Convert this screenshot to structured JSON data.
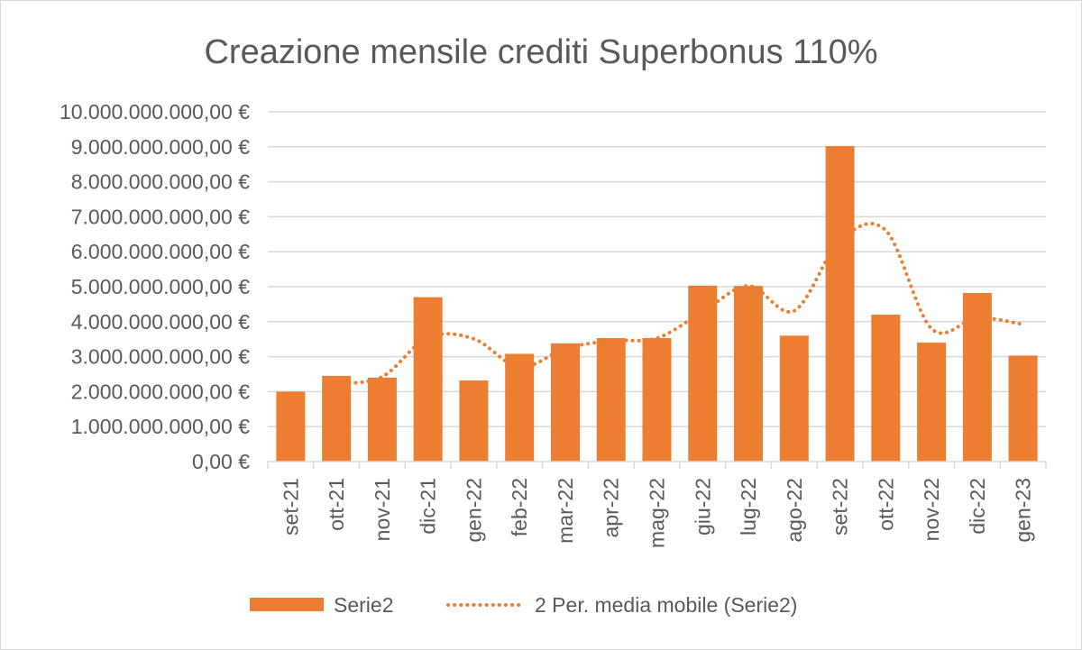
{
  "chart_data": {
    "type": "bar",
    "title": "Creazione mensile crediti Superbonus 110%",
    "xlabel": "",
    "ylabel": "",
    "categories": [
      "set-21",
      "ott-21",
      "nov-21",
      "dic-21",
      "gen-22",
      "feb-22",
      "mar-22",
      "apr-22",
      "mag-22",
      "giu-22",
      "lug-22",
      "ago-22",
      "set-22",
      "ott-22",
      "nov-22",
      "dic-22",
      "gen-23"
    ],
    "series": [
      {
        "name": "Serie2",
        "type": "bar",
        "values": [
          2000000000,
          2450000000,
          2400000000,
          4700000000,
          2320000000,
          3080000000,
          3380000000,
          3530000000,
          3530000000,
          5030000000,
          5020000000,
          3600000000,
          9020000000,
          4200000000,
          3400000000,
          4820000000,
          3030000000
        ]
      },
      {
        "name": "2 Per. media mobile (Serie2)",
        "type": "line",
        "style": "dotted",
        "values": [
          null,
          2225000000,
          2425000000,
          3550000000,
          3510000000,
          2700000000,
          3230000000,
          3455000000,
          3530000000,
          4280000000,
          5025000000,
          4310000000,
          6310000000,
          6610000000,
          3800000000,
          4110000000,
          3925000000
        ]
      }
    ],
    "ylim": [
      0,
      10000000000
    ],
    "yticks": [
      0,
      1000000000,
      2000000000,
      3000000000,
      4000000000,
      5000000000,
      6000000000,
      7000000000,
      8000000000,
      9000000000,
      10000000000
    ],
    "ytick_labels": [
      "0,00 €",
      "1.000.000.000,00 €",
      "2.000.000.000,00 €",
      "3.000.000.000,00 €",
      "4.000.000.000,00 €",
      "5.000.000.000,00 €",
      "6.000.000.000,00 €",
      "7.000.000.000,00 €",
      "8.000.000.000,00 €",
      "9.000.000.000,00 €",
      "10.000.000.000,00 €"
    ],
    "grid": true,
    "legend_position": "bottom",
    "colors": {
      "bar": "#ED7D31",
      "line": "#ED7D31",
      "grid": "#d9d9d9",
      "text": "#595959"
    }
  }
}
